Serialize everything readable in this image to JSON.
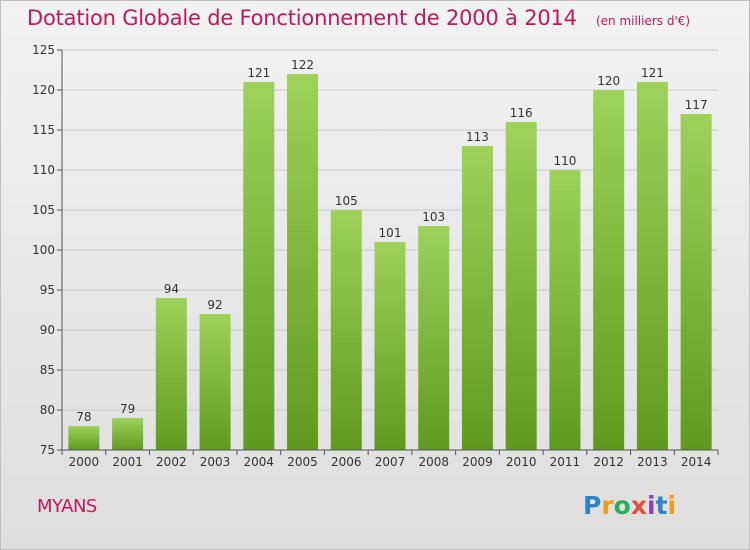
{
  "title": "Dotation Globale de Fonctionnement de 2000 à 2014",
  "subtitle": "(en milliers d'€)",
  "commune": "MYANS",
  "logo": {
    "text": "Proxiti",
    "letters": [
      {
        "ch": "P",
        "color": "#2e86c1"
      },
      {
        "ch": "r",
        "color": "#f39c12"
      },
      {
        "ch": "o",
        "color": "#27ae60"
      },
      {
        "ch": "x",
        "color": "#e74c3c"
      },
      {
        "ch": "i",
        "color": "#8e44ad"
      },
      {
        "ch": "t",
        "color": "#2e86c1"
      },
      {
        "ch": "i",
        "color": "#f39c12"
      }
    ]
  },
  "colors": {
    "title": "#c2185b",
    "bar_top": "#9ed25a",
    "bar_bottom": "#5f9a1e",
    "grid": "#c8c8c8",
    "axis": "#555555",
    "label": "#333333"
  },
  "chart_data": {
    "type": "bar",
    "categories": [
      "2000",
      "2001",
      "2002",
      "2003",
      "2004",
      "2005",
      "2006",
      "2007",
      "2008",
      "2009",
      "2010",
      "2011",
      "2012",
      "2013",
      "2014"
    ],
    "values": [
      78,
      79,
      94,
      92,
      121,
      122,
      105,
      101,
      103,
      113,
      116,
      110,
      120,
      121,
      117
    ],
    "ylim": [
      75,
      125
    ],
    "yticks": [
      75,
      80,
      85,
      90,
      95,
      100,
      105,
      110,
      115,
      120,
      125
    ],
    "grid": true,
    "xlabel": "",
    "ylabel": ""
  }
}
